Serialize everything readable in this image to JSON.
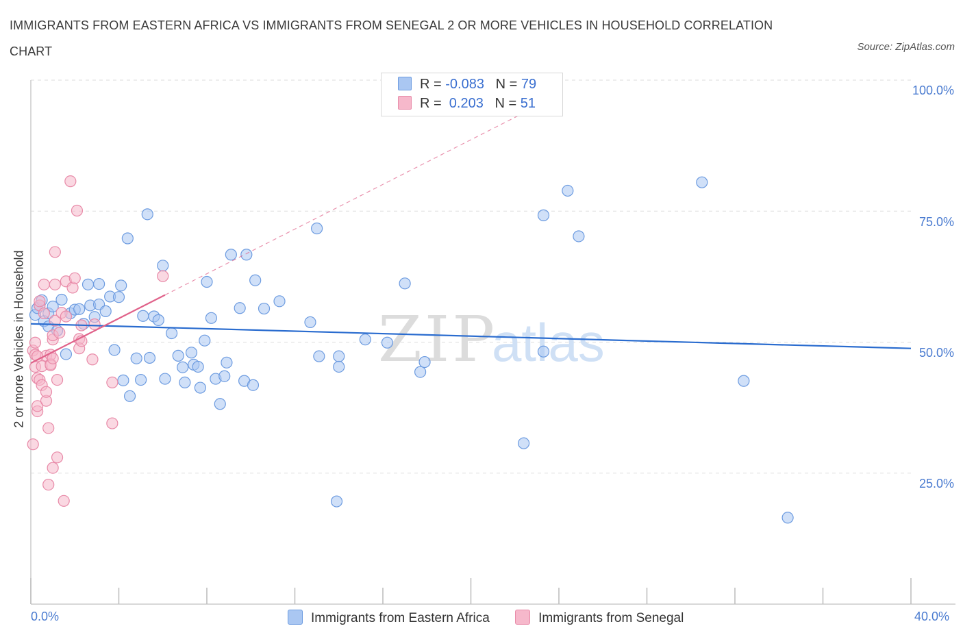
{
  "header": {
    "title": "IMMIGRANTS FROM EASTERN AFRICA VS IMMIGRANTS FROM SENEGAL 2 OR MORE VEHICLES IN HOUSEHOLD CORRELATION CHART",
    "source": "Source: ZipAtlas.com"
  },
  "watermark": {
    "zip": "ZIP",
    "atlas": "atlas"
  },
  "colors": {
    "blue_fill": "#aac7f2",
    "blue_stroke": "#6c9be0",
    "blue_line": "#2a6ccf",
    "pink_fill": "#f6b8cb",
    "pink_stroke": "#e88aa8",
    "pink_line": "#e0628a",
    "grid": "#dddddd",
    "tick_text": "#4a7bd0"
  },
  "legend": {
    "rows": [
      {
        "r_label": "R = ",
        "r_value": "-0.083",
        "n_label": "N = ",
        "n_value": "79"
      },
      {
        "r_label": "R = ",
        "r_value": " 0.203",
        "n_label": "N = ",
        "n_value": "51"
      }
    ],
    "items": [
      "Immigrants from Eastern Africa",
      "Immigrants from Senegal"
    ]
  },
  "chart_data": {
    "type": "scatter",
    "title": "IMMIGRANTS FROM EASTERN AFRICA VS IMMIGRANTS FROM SENEGAL 2 OR MORE VEHICLES IN HOUSEHOLD CORRELATION CHART",
    "xlabel": "",
    "ylabel": "2 or more Vehicles in Household",
    "xlim": [
      0,
      40
    ],
    "ylim": [
      0,
      100
    ],
    "x_tick_labels": [
      "0.0%",
      "40.0%"
    ],
    "y_tick_values": [
      25,
      50,
      75,
      100
    ],
    "y_tick_labels": [
      "25.0%",
      "50.0%",
      "75.0%",
      "100.0%"
    ],
    "grid": true,
    "legend_position": "top-center",
    "series": [
      {
        "name": "Immigrants from Eastern Africa",
        "r": -0.083,
        "n": 79,
        "trend": {
          "x": [
            0,
            40
          ],
          "y": [
            53.5,
            48.8
          ]
        },
        "points": [
          [
            0.2,
            55.2
          ],
          [
            0.3,
            56.5
          ],
          [
            0.4,
            57.0
          ],
          [
            0.5,
            58.0
          ],
          [
            0.6,
            54.0
          ],
          [
            0.8,
            53.0
          ],
          [
            0.8,
            55.5
          ],
          [
            1.0,
            56.8
          ],
          [
            1.2,
            52.2
          ],
          [
            1.4,
            58.1
          ],
          [
            1.6,
            47.7
          ],
          [
            1.8,
            55.5
          ],
          [
            2.0,
            56.2
          ],
          [
            2.2,
            56.3
          ],
          [
            2.4,
            53.5
          ],
          [
            2.6,
            61.0
          ],
          [
            2.7,
            57.0
          ],
          [
            2.9,
            54.8
          ],
          [
            3.1,
            61.1
          ],
          [
            3.1,
            57.2
          ],
          [
            3.4,
            55.9
          ],
          [
            3.6,
            58.7
          ],
          [
            3.8,
            48.5
          ],
          [
            4.0,
            58.6
          ],
          [
            4.1,
            60.8
          ],
          [
            4.2,
            42.7
          ],
          [
            4.4,
            69.8
          ],
          [
            4.5,
            39.7
          ],
          [
            4.8,
            46.9
          ],
          [
            5.0,
            42.8
          ],
          [
            5.1,
            55.0
          ],
          [
            5.3,
            74.4
          ],
          [
            5.4,
            47.0
          ],
          [
            5.6,
            54.9
          ],
          [
            5.8,
            54.2
          ],
          [
            6.0,
            64.6
          ],
          [
            6.1,
            43.0
          ],
          [
            6.4,
            51.7
          ],
          [
            6.7,
            47.4
          ],
          [
            6.9,
            45.2
          ],
          [
            7.0,
            42.3
          ],
          [
            7.3,
            48.0
          ],
          [
            7.4,
            45.7
          ],
          [
            7.6,
            45.3
          ],
          [
            7.7,
            41.3
          ],
          [
            7.9,
            50.3
          ],
          [
            8.0,
            61.5
          ],
          [
            8.2,
            54.6
          ],
          [
            8.4,
            43.0
          ],
          [
            8.6,
            38.2
          ],
          [
            8.8,
            43.5
          ],
          [
            8.9,
            46.1
          ],
          [
            9.1,
            66.7
          ],
          [
            9.5,
            56.5
          ],
          [
            9.7,
            42.6
          ],
          [
            9.8,
            66.7
          ],
          [
            10.1,
            41.8
          ],
          [
            10.2,
            61.8
          ],
          [
            10.6,
            56.4
          ],
          [
            11.3,
            57.8
          ],
          [
            12.7,
            53.8
          ],
          [
            13.0,
            71.7
          ],
          [
            13.1,
            47.3
          ],
          [
            13.9,
            19.6
          ],
          [
            14.0,
            47.3
          ],
          [
            14.0,
            45.3
          ],
          [
            15.2,
            50.5
          ],
          [
            16.2,
            49.9
          ],
          [
            17.0,
            61.2
          ],
          [
            17.7,
            44.3
          ],
          [
            17.9,
            46.2
          ],
          [
            22.4,
            30.7
          ],
          [
            23.3,
            74.2
          ],
          [
            23.3,
            48.2
          ],
          [
            24.4,
            78.9
          ],
          [
            24.9,
            70.2
          ],
          [
            30.5,
            80.5
          ],
          [
            32.4,
            42.6
          ],
          [
            34.4,
            16.5
          ]
        ]
      },
      {
        "name": "Immigrants from Senegal",
        "r": 0.203,
        "n": 51,
        "trend": {
          "x": [
            0,
            6.1
          ],
          "y": [
            46.0,
            59.0
          ]
        },
        "points": [
          [
            0.1,
            30.5
          ],
          [
            0.1,
            48.4
          ],
          [
            0.2,
            49.9
          ],
          [
            0.2,
            47.6
          ],
          [
            0.2,
            45.3
          ],
          [
            0.3,
            43.1
          ],
          [
            0.3,
            36.8
          ],
          [
            0.3,
            37.8
          ],
          [
            0.4,
            42.8
          ],
          [
            0.4,
            57.0
          ],
          [
            0.4,
            57.8
          ],
          [
            0.5,
            41.8
          ],
          [
            0.5,
            45.4
          ],
          [
            0.6,
            61.0
          ],
          [
            0.6,
            55.5
          ],
          [
            0.7,
            38.8
          ],
          [
            0.7,
            47.4
          ],
          [
            0.7,
            40.5
          ],
          [
            0.8,
            22.8
          ],
          [
            0.8,
            33.6
          ],
          [
            0.9,
            45.8
          ],
          [
            0.9,
            45.6
          ],
          [
            0.9,
            47.6
          ],
          [
            1.0,
            26.0
          ],
          [
            1.0,
            50.5
          ],
          [
            1.0,
            51.3
          ],
          [
            1.0,
            46.9
          ],
          [
            1.1,
            61.0
          ],
          [
            1.1,
            67.2
          ],
          [
            1.1,
            54.1
          ],
          [
            1.2,
            42.8
          ],
          [
            1.2,
            28.0
          ],
          [
            1.3,
            51.8
          ],
          [
            1.4,
            55.6
          ],
          [
            1.5,
            19.7
          ],
          [
            1.6,
            61.6
          ],
          [
            1.6,
            54.9
          ],
          [
            1.8,
            80.7
          ],
          [
            1.9,
            60.4
          ],
          [
            2.1,
            75.1
          ],
          [
            2.0,
            62.2
          ],
          [
            2.2,
            50.6
          ],
          [
            2.2,
            48.8
          ],
          [
            2.3,
            53.2
          ],
          [
            2.3,
            50.2
          ],
          [
            2.8,
            46.7
          ],
          [
            2.9,
            53.4
          ],
          [
            3.7,
            42.3
          ],
          [
            3.7,
            34.5
          ],
          [
            6.0,
            62.6
          ],
          [
            0.3,
            47.3
          ]
        ]
      }
    ]
  }
}
